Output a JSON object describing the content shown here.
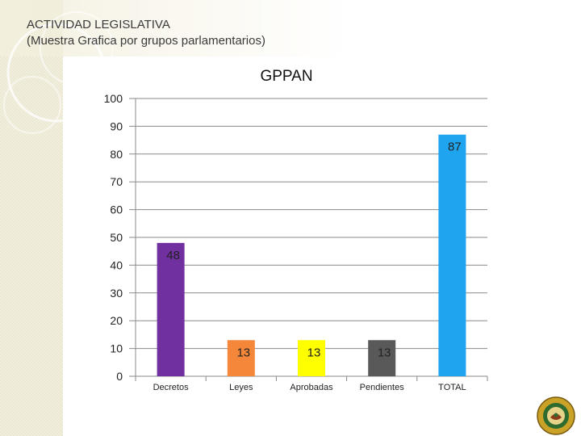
{
  "title": {
    "line1": "ACTIVIDAD LEGISLATIVA",
    "line2": "(Muestra Grafica por grupos parlamentarios)"
  },
  "colors": {
    "side_band": "#f3efdd",
    "text": "#3a3a3a",
    "gridline": "#8a8a8a"
  },
  "chart_data": {
    "type": "bar",
    "title": "GPPAN",
    "categories": [
      "Decretos",
      "Leyes",
      "Aprobadas",
      "Pendientes",
      "TOTAL"
    ],
    "values": [
      48,
      13,
      13,
      13,
      87
    ],
    "data_labels": [
      "48",
      "13",
      "13",
      "13",
      "87"
    ],
    "colors": [
      "#7030a0",
      "#f5873a",
      "#ffff00",
      "#595959",
      "#1fa5f0"
    ],
    "yticks": [
      0,
      10,
      20,
      30,
      40,
      50,
      60,
      70,
      80,
      90,
      100
    ],
    "ylim": [
      0,
      100
    ],
    "xlabel": "",
    "ylabel": "",
    "grid": true,
    "legend": "none"
  }
}
